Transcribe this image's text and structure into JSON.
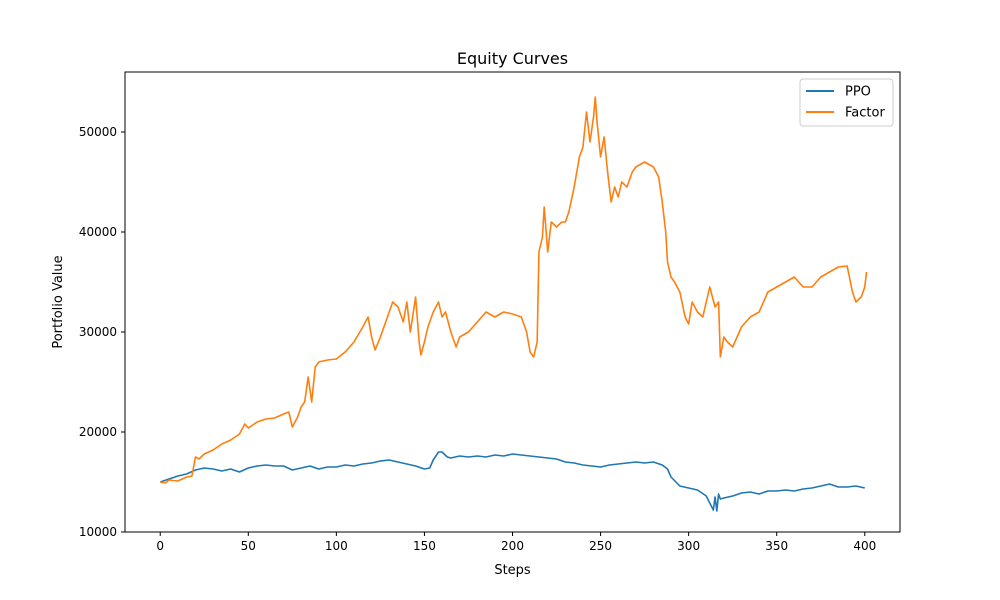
{
  "chart_data": {
    "type": "line",
    "title": "Equity Curves",
    "xlabel": "Steps",
    "ylabel": "Portfolio Value",
    "xlim": [
      -20,
      420
    ],
    "ylim": [
      10000,
      56000
    ],
    "xticks": [
      0,
      50,
      100,
      150,
      200,
      250,
      300,
      350,
      400
    ],
    "yticks": [
      10000,
      20000,
      30000,
      40000,
      50000
    ],
    "grid": false,
    "legend_position": "top-right",
    "series": [
      {
        "name": "PPO",
        "color": "#1f77b4",
        "x": [
          0,
          5,
          10,
          15,
          20,
          25,
          30,
          35,
          40,
          45,
          50,
          55,
          60,
          65,
          70,
          75,
          80,
          85,
          90,
          95,
          100,
          105,
          110,
          115,
          120,
          125,
          130,
          135,
          140,
          145,
          150,
          153,
          155,
          158,
          160,
          163,
          165,
          170,
          175,
          180,
          185,
          190,
          195,
          200,
          205,
          210,
          215,
          220,
          225,
          230,
          235,
          240,
          245,
          250,
          255,
          260,
          265,
          270,
          275,
          280,
          285,
          288,
          290,
          295,
          300,
          305,
          310,
          314,
          315,
          316,
          317,
          318,
          320,
          325,
          330,
          335,
          340,
          345,
          350,
          355,
          360,
          365,
          370,
          375,
          380,
          385,
          390,
          395,
          400
        ],
        "y": [
          15000,
          15300,
          15600,
          15800,
          16200,
          16400,
          16300,
          16100,
          16300,
          16000,
          16400,
          16600,
          16700,
          16600,
          16600,
          16200,
          16400,
          16600,
          16300,
          16500,
          16500,
          16700,
          16600,
          16800,
          16900,
          17100,
          17200,
          17000,
          16800,
          16600,
          16300,
          16400,
          17200,
          18000,
          18000,
          17500,
          17400,
          17600,
          17500,
          17600,
          17500,
          17700,
          17600,
          17800,
          17700,
          17600,
          17500,
          17400,
          17300,
          17000,
          16900,
          16700,
          16600,
          16500,
          16700,
          16800,
          16900,
          17000,
          16900,
          17000,
          16700,
          16300,
          15500,
          14600,
          14400,
          14200,
          13600,
          12200,
          13500,
          12100,
          13800,
          13300,
          13400,
          13600,
          13900,
          14000,
          13800,
          14100,
          14100,
          14200,
          14100,
          14300,
          14400,
          14600,
          14800,
          14500,
          14500,
          14600,
          14400
        ]
      },
      {
        "name": "Factor",
        "color": "#ff7f0e",
        "x": [
          0,
          3,
          5,
          10,
          15,
          18,
          20,
          22,
          25,
          30,
          35,
          40,
          45,
          48,
          50,
          55,
          60,
          65,
          70,
          73,
          75,
          78,
          80,
          82,
          84,
          86,
          88,
          90,
          95,
          100,
          105,
          110,
          115,
          118,
          120,
          122,
          125,
          128,
          130,
          132,
          135,
          138,
          140,
          142,
          145,
          147,
          148,
          150,
          152,
          155,
          158,
          160,
          162,
          165,
          168,
          170,
          175,
          180,
          185,
          190,
          195,
          200,
          205,
          208,
          210,
          212,
          214,
          215,
          217,
          218,
          220,
          222,
          225,
          228,
          230,
          232,
          235,
          238,
          240,
          242,
          244,
          246,
          247,
          248,
          250,
          252,
          254,
          256,
          258,
          260,
          262,
          265,
          268,
          270,
          275,
          280,
          283,
          285,
          287,
          288,
          290,
          292,
          295,
          298,
          300,
          302,
          305,
          308,
          310,
          312,
          315,
          317,
          318,
          320,
          322,
          325,
          330,
          335,
          340,
          345,
          350,
          355,
          360,
          365,
          370,
          375,
          380,
          385,
          390,
          393,
          395,
          398,
          400,
          401
        ],
        "y": [
          15000,
          14900,
          15200,
          15100,
          15500,
          15600,
          17500,
          17300,
          17800,
          18200,
          18800,
          19200,
          19800,
          20800,
          20400,
          21000,
          21300,
          21400,
          21800,
          22000,
          20500,
          21500,
          22500,
          23000,
          25500,
          23000,
          26500,
          27000,
          27200,
          27300,
          28000,
          29000,
          30500,
          31500,
          29500,
          28200,
          29500,
          31000,
          32000,
          33000,
          32500,
          31000,
          33000,
          30000,
          33500,
          29000,
          27700,
          29000,
          30500,
          32000,
          33000,
          31500,
          32000,
          30000,
          28500,
          29500,
          30000,
          31000,
          32000,
          31500,
          32000,
          31800,
          31500,
          30000,
          28000,
          27500,
          29000,
          38000,
          39500,
          42500,
          38000,
          41000,
          40500,
          41000,
          41000,
          42000,
          44500,
          47500,
          48500,
          52000,
          49000,
          51500,
          53500,
          51000,
          47500,
          49500,
          46000,
          43000,
          44500,
          43500,
          45000,
          44500,
          46000,
          46500,
          47000,
          46500,
          45500,
          43000,
          40000,
          37000,
          35500,
          35000,
          34000,
          31500,
          30800,
          33000,
          32000,
          31500,
          33000,
          34500,
          32500,
          33000,
          27500,
          29500,
          29000,
          28500,
          30500,
          31500,
          32000,
          34000,
          34500,
          35000,
          35500,
          34500,
          34500,
          35500,
          36000,
          36500,
          36600,
          34000,
          33000,
          33500,
          34500,
          36000
        ]
      }
    ]
  }
}
